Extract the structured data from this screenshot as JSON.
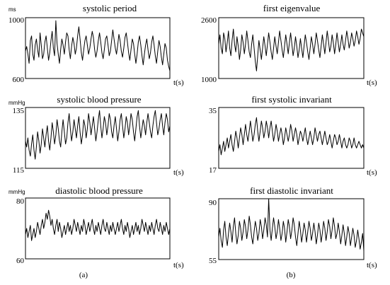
{
  "figure": {
    "panel_labels": [
      "(a)",
      "(b)"
    ]
  },
  "chart_data": [
    {
      "type": "line",
      "title": "systolic period",
      "unit": "ms",
      "ylabel": "ms",
      "xlabel": "t(s)",
      "ylim": [
        600,
        1000
      ],
      "yticks": [
        "1000",
        "600"
      ],
      "values": [
        780,
        810,
        760,
        700,
        850,
        880,
        760,
        720,
        820,
        860,
        790,
        740,
        900,
        820,
        730,
        760,
        840,
        880,
        800,
        720,
        770,
        850,
        910,
        800,
        750,
        980,
        830,
        760,
        700,
        790,
        860,
        820,
        760,
        840,
        900,
        880,
        790,
        730,
        810,
        870,
        830,
        760,
        800,
        880,
        940,
        860,
        770,
        720,
        790,
        850,
        880,
        820,
        760,
        800,
        860,
        910,
        870,
        790,
        740,
        780,
        850,
        900,
        840,
        770,
        730,
        790,
        860,
        880,
        820,
        750,
        780,
        850,
        920,
        860,
        800,
        760,
        820,
        890,
        850,
        780,
        740,
        800,
        870,
        900,
        840,
        770,
        720,
        790,
        860,
        830,
        760,
        700,
        760,
        840,
        880,
        820,
        750,
        690,
        760,
        820,
        860,
        790,
        730,
        770,
        840,
        880,
        820,
        750,
        700,
        780,
        850,
        810,
        740,
        690,
        760,
        830,
        800,
        720,
        680,
        650
      ]
    },
    {
      "type": "line",
      "title": "systolic  blood pressure",
      "unit": "mmHg",
      "ylabel": "mmHg",
      "xlabel": "t(s)",
      "ylim": [
        115,
        135
      ],
      "yticks": [
        "135",
        "115"
      ],
      "values": [
        124,
        122,
        125,
        121,
        119,
        123,
        126,
        121,
        118,
        122,
        127,
        124,
        120,
        123,
        128,
        125,
        122,
        126,
        129,
        124,
        121,
        125,
        130,
        127,
        123,
        126,
        131,
        128,
        124,
        122,
        127,
        131,
        127,
        123,
        125,
        130,
        133,
        128,
        124,
        127,
        131,
        128,
        125,
        129,
        132,
        127,
        123,
        126,
        131,
        129,
        125,
        128,
        133,
        130,
        126,
        129,
        132,
        128,
        124,
        127,
        131,
        134,
        129,
        125,
        128,
        132,
        130,
        126,
        129,
        133,
        131,
        127,
        125,
        129,
        132,
        128,
        124,
        127,
        131,
        133,
        129,
        125,
        128,
        132,
        130,
        126,
        129,
        133,
        131,
        127,
        124,
        128,
        132,
        134,
        129,
        125,
        128,
        131,
        129,
        126,
        130,
        133,
        130,
        127,
        125,
        129,
        132,
        134,
        130,
        126,
        128,
        131,
        133,
        129,
        126,
        130,
        133,
        131,
        127,
        129
      ]
    },
    {
      "type": "line",
      "title": "diastolic blood pressure",
      "unit": "mmHg",
      "ylabel": "mmHg",
      "xlabel": "t(s)",
      "ylim": [
        60,
        80
      ],
      "yticks": [
        "80",
        "60"
      ],
      "values": [
        68,
        70,
        67,
        69,
        71,
        66,
        68,
        70,
        67,
        69,
        72,
        70,
        68,
        71,
        73,
        70,
        72,
        75,
        73,
        76,
        74,
        71,
        73,
        70,
        68,
        71,
        73,
        69,
        72,
        70,
        67,
        69,
        71,
        68,
        70,
        72,
        69,
        71,
        68,
        70,
        73,
        71,
        69,
        72,
        70,
        68,
        71,
        69,
        73,
        71,
        68,
        70,
        72,
        69,
        71,
        73,
        70,
        68,
        71,
        69,
        72,
        70,
        68,
        71,
        73,
        70,
        69,
        72,
        70,
        68,
        71,
        69,
        72,
        70,
        68,
        70,
        72,
        69,
        71,
        73,
        70,
        68,
        71,
        69,
        72,
        70,
        67,
        69,
        71,
        68,
        70,
        72,
        69,
        71,
        68,
        70,
        73,
        71,
        69,
        72,
        70,
        68,
        71,
        69,
        72,
        70,
        68,
        71,
        73,
        70,
        69,
        72,
        70,
        68,
        71,
        69,
        72,
        70,
        68,
        70
      ]
    },
    {
      "type": "line",
      "title": "first eigenvalue",
      "xlabel": "t(s)",
      "ylim": [
        1000,
        2600
      ],
      "yticks": [
        "2600",
        "1000"
      ],
      "values": [
        1900,
        2150,
        1800,
        1650,
        2200,
        2050,
        1700,
        1950,
        2250,
        1800,
        1600,
        2000,
        2300,
        1900,
        1700,
        2100,
        1850,
        1500,
        1750,
        2150,
        1950,
        1650,
        1900,
        2250,
        2000,
        1700,
        1550,
        1900,
        2150,
        1800,
        1450,
        1200,
        1600,
        2000,
        1750,
        1500,
        1800,
        2100,
        1850,
        1600,
        1900,
        2200,
        1950,
        1700,
        1500,
        1800,
        2100,
        1850,
        1650,
        1950,
        2250,
        2000,
        1750,
        1550,
        1850,
        2150,
        1900,
        1650,
        1950,
        2200,
        1900,
        1600,
        1800,
        2100,
        1850,
        1550,
        1750,
        2050,
        1800,
        1550,
        1850,
        2150,
        1950,
        1700,
        1500,
        1800,
        2100,
        1900,
        1650,
        1900,
        2200,
        2000,
        1750,
        1550,
        1850,
        2150,
        1900,
        1650,
        1950,
        2250,
        2000,
        1700,
        1850,
        2150,
        1950,
        1650,
        1900,
        2200,
        1950,
        1700,
        1900,
        2150,
        1900,
        1750,
        2000,
        2250,
        2050,
        1800,
        1950,
        2200,
        2050,
        1850,
        2000,
        2250,
        2100,
        1900,
        2050,
        2300,
        2200,
        2100
      ]
    },
    {
      "type": "line",
      "title": "first systolic invariant",
      "xlabel": "t(s)",
      "ylim": [
        17,
        35
      ],
      "yticks": [
        "35",
        "17"
      ],
      "values": [
        22,
        24,
        21,
        23,
        25,
        22,
        24,
        26,
        23,
        25,
        27,
        24,
        22,
        25,
        28,
        26,
        23,
        26,
        29,
        27,
        24,
        27,
        30,
        27,
        25,
        28,
        31,
        28,
        25,
        27,
        30,
        32,
        28,
        25,
        28,
        31,
        29,
        26,
        28,
        31,
        29,
        26,
        29,
        31,
        28,
        25,
        27,
        30,
        28,
        25,
        27,
        29,
        27,
        24,
        26,
        29,
        27,
        25,
        27,
        30,
        28,
        25,
        27,
        29,
        27,
        24,
        26,
        28,
        27,
        25,
        27,
        29,
        26,
        24,
        26,
        28,
        26,
        24,
        26,
        29,
        27,
        25,
        27,
        28,
        26,
        24,
        26,
        28,
        26,
        24,
        25,
        27,
        25,
        23,
        25,
        27,
        26,
        24,
        25,
        27,
        25,
        23,
        25,
        26,
        24,
        23,
        24,
        26,
        25,
        23,
        24,
        26,
        24,
        23,
        24,
        25,
        24,
        23,
        24,
        23
      ]
    },
    {
      "type": "line",
      "title": "first diastolic invariant",
      "xlabel": "t(s)",
      "ylim": [
        55,
        90
      ],
      "yticks": [
        "90",
        "55"
      ],
      "values": [
        68,
        73,
        66,
        62,
        72,
        77,
        68,
        63,
        70,
        76,
        71,
        65,
        74,
        79,
        70,
        64,
        69,
        77,
        73,
        66,
        71,
        78,
        74,
        67,
        72,
        80,
        75,
        68,
        64,
        71,
        77,
        73,
        66,
        70,
        78,
        74,
        67,
        72,
        79,
        75,
        68,
        90,
        72,
        66,
        73,
        79,
        74,
        67,
        71,
        78,
        73,
        66,
        70,
        77,
        73,
        65,
        71,
        78,
        74,
        67,
        72,
        79,
        75,
        68,
        63,
        70,
        77,
        72,
        65,
        70,
        76,
        72,
        65,
        71,
        77,
        73,
        66,
        70,
        76,
        71,
        64,
        69,
        76,
        72,
        65,
        70,
        77,
        73,
        66,
        71,
        78,
        74,
        67,
        72,
        79,
        74,
        67,
        70,
        76,
        71,
        64,
        69,
        75,
        70,
        63,
        68,
        74,
        70,
        63,
        68,
        73,
        69,
        62,
        66,
        72,
        67,
        61,
        65,
        70,
        60
      ]
    }
  ]
}
